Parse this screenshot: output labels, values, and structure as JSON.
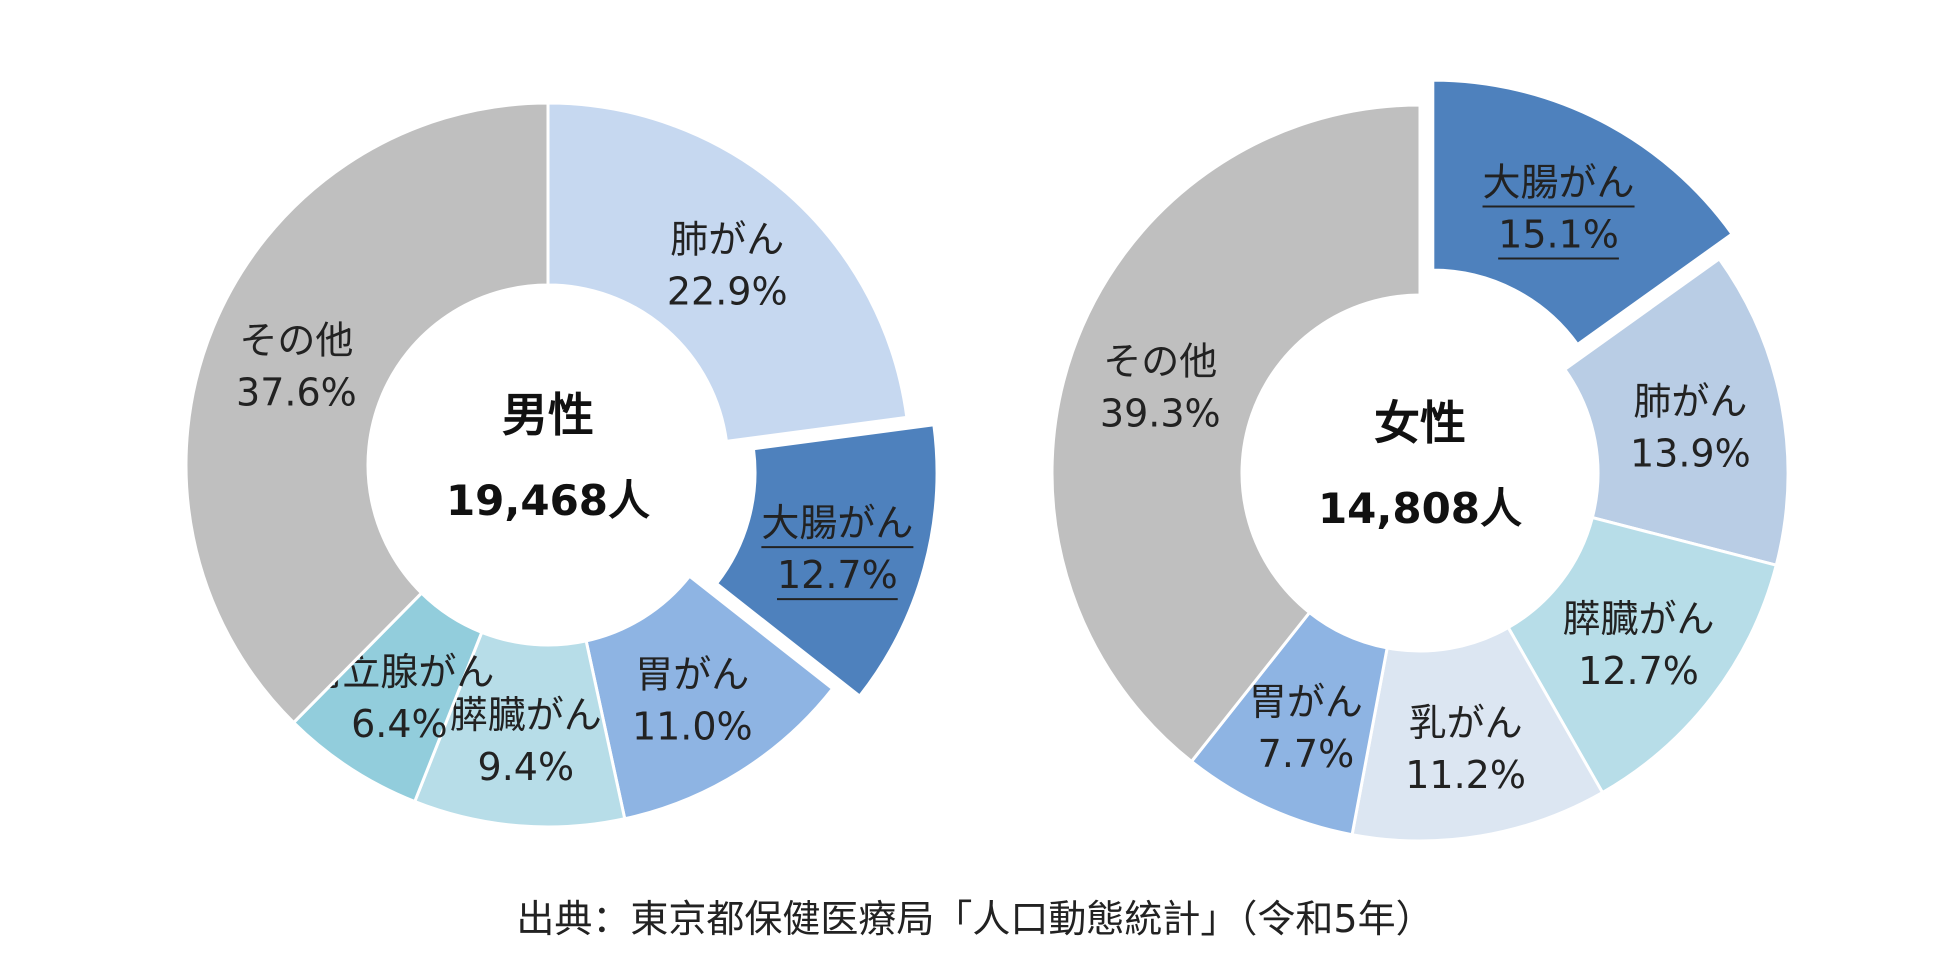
{
  "chart_data": [
    {
      "type": "pie",
      "variant": "donut",
      "center_title": "男性",
      "center_total": "19,468人",
      "slices": [
        {
          "name": "肺がん",
          "value": 22.9,
          "label": "22.9%",
          "color": "#c6d8f0",
          "exploded": false,
          "underline": false
        },
        {
          "name": "大腸がん",
          "value": 12.7,
          "label": "12.7%",
          "color": "#4e81bd",
          "exploded": true,
          "underline": true
        },
        {
          "name": "胃がん",
          "value": 11.0,
          "label": "11.0%",
          "color": "#8eb4e3",
          "exploded": false,
          "underline": false
        },
        {
          "name": "膵臓がん",
          "value": 9.4,
          "label": "9.4%",
          "color": "#b7dde8",
          "exploded": false,
          "underline": false
        },
        {
          "name": "前立腺がん",
          "value": 6.4,
          "label": "6.4%",
          "color": "#92cddc",
          "exploded": false,
          "underline": false
        },
        {
          "name": "その他",
          "value": 37.6,
          "label": "37.6%",
          "color": "#bfbfbf",
          "exploded": false,
          "underline": false
        }
      ]
    },
    {
      "type": "pie",
      "variant": "donut",
      "center_title": "女性",
      "center_total": "14,808人",
      "slices": [
        {
          "name": "大腸がん",
          "value": 15.1,
          "label": "15.1%",
          "color": "#4e81bd",
          "exploded": true,
          "underline": true
        },
        {
          "name": "肺がん",
          "value": 13.9,
          "label": "13.9%",
          "color": "#b9cde5",
          "exploded": false,
          "underline": false
        },
        {
          "name": "膵臓がん",
          "value": 12.7,
          "label": "12.7%",
          "color": "#b7dde8",
          "exploded": false,
          "underline": false
        },
        {
          "name": "乳がん",
          "value": 11.2,
          "label": "11.2%",
          "color": "#dce6f2",
          "exploded": false,
          "underline": false
        },
        {
          "name": "胃がん",
          "value": 7.7,
          "label": "7.7%",
          "color": "#8eb4e3",
          "exploded": false,
          "underline": false
        },
        {
          "name": "その他",
          "value": 39.3,
          "label": "39.3%",
          "color": "#bfbfbf",
          "exploded": false,
          "underline": false
        }
      ]
    }
  ],
  "source_note": "出典：東京都保健医療局「人口動態統計」（令和5年）"
}
